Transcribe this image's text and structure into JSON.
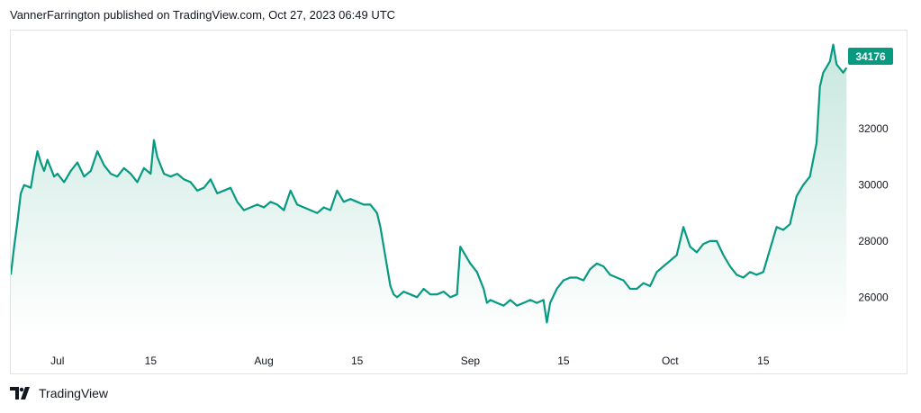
{
  "header": {
    "text": "VannerFarrington published on TradingView.com, Oct 27, 2023 06:49 UTC"
  },
  "footer": {
    "brand": "TradingView"
  },
  "colors": {
    "line": "#089981",
    "area_top": "#c5e6dd",
    "area_bottom": "#ffffff",
    "label_bg": "#089981"
  },
  "chart_data": {
    "type": "area",
    "last_price_label": "34176",
    "y_ticks": [
      26000,
      28000,
      30000,
      32000
    ],
    "y_tick_labels": [
      "26000",
      "28000",
      "30000",
      "32000"
    ],
    "ylim": [
      24600,
      35500
    ],
    "x_range_days": [
      0,
      126
    ],
    "x_ticks": [
      {
        "label": "Jul",
        "day": 7
      },
      {
        "label": "15",
        "day": 21
      },
      {
        "label": "Aug",
        "day": 38
      },
      {
        "label": "15",
        "day": 52
      },
      {
        "label": "Sep",
        "day": 69
      },
      {
        "label": "15",
        "day": 83
      },
      {
        "label": "Oct",
        "day": 99
      },
      {
        "label": "15",
        "day": 113
      }
    ],
    "series": [
      {
        "values": [
          [
            0,
            26800
          ],
          [
            0.5,
            27800
          ],
          [
            1,
            28700
          ],
          [
            1.5,
            29700
          ],
          [
            2,
            30000
          ],
          [
            3,
            29900
          ],
          [
            3.5,
            30600
          ],
          [
            4,
            31200
          ],
          [
            4.5,
            30800
          ],
          [
            5,
            30500
          ],
          [
            5.5,
            30900
          ],
          [
            6,
            30600
          ],
          [
            6.5,
            30300
          ],
          [
            7,
            30400
          ],
          [
            8,
            30100
          ],
          [
            9,
            30500
          ],
          [
            10,
            30800
          ],
          [
            11,
            30300
          ],
          [
            12,
            30500
          ],
          [
            13,
            31200
          ],
          [
            14,
            30700
          ],
          [
            15,
            30400
          ],
          [
            16,
            30300
          ],
          [
            17,
            30600
          ],
          [
            18,
            30400
          ],
          [
            19,
            30100
          ],
          [
            20,
            30600
          ],
          [
            21,
            30400
          ],
          [
            21.5,
            31600
          ],
          [
            22,
            31000
          ],
          [
            23,
            30400
          ],
          [
            24,
            30300
          ],
          [
            25,
            30400
          ],
          [
            26,
            30200
          ],
          [
            27,
            30100
          ],
          [
            28,
            29800
          ],
          [
            29,
            29900
          ],
          [
            30,
            30200
          ],
          [
            31,
            29700
          ],
          [
            32,
            29800
          ],
          [
            33,
            29900
          ],
          [
            34,
            29400
          ],
          [
            35,
            29100
          ],
          [
            36,
            29200
          ],
          [
            37,
            29300
          ],
          [
            38,
            29200
          ],
          [
            39,
            29400
          ],
          [
            40,
            29300
          ],
          [
            41,
            29100
          ],
          [
            42,
            29800
          ],
          [
            43,
            29300
          ],
          [
            44,
            29200
          ],
          [
            45,
            29100
          ],
          [
            46,
            29000
          ],
          [
            47,
            29200
          ],
          [
            48,
            29100
          ],
          [
            49,
            29800
          ],
          [
            50,
            29400
          ],
          [
            51,
            29500
          ],
          [
            52,
            29400
          ],
          [
            53,
            29300
          ],
          [
            54,
            29300
          ],
          [
            55,
            29000
          ],
          [
            55.5,
            28500
          ],
          [
            56,
            27800
          ],
          [
            57,
            26400
          ],
          [
            57.5,
            26100
          ],
          [
            58,
            26000
          ],
          [
            59,
            26200
          ],
          [
            60,
            26100
          ],
          [
            61,
            26000
          ],
          [
            62,
            26300
          ],
          [
            63,
            26100
          ],
          [
            64,
            26100
          ],
          [
            65,
            26200
          ],
          [
            66,
            26000
          ],
          [
            67,
            26100
          ],
          [
            67.5,
            27800
          ],
          [
            68,
            27600
          ],
          [
            69,
            27200
          ],
          [
            70,
            26900
          ],
          [
            71,
            26300
          ],
          [
            71.5,
            25800
          ],
          [
            72,
            25900
          ],
          [
            73,
            25800
          ],
          [
            74,
            25700
          ],
          [
            75,
            25900
          ],
          [
            76,
            25700
          ],
          [
            77,
            25800
          ],
          [
            78,
            25900
          ],
          [
            79,
            25800
          ],
          [
            80,
            25900
          ],
          [
            80.5,
            25100
          ],
          [
            81,
            25800
          ],
          [
            82,
            26300
          ],
          [
            83,
            26600
          ],
          [
            84,
            26700
          ],
          [
            85,
            26700
          ],
          [
            86,
            26600
          ],
          [
            87,
            27000
          ],
          [
            88,
            27200
          ],
          [
            89,
            27100
          ],
          [
            90,
            26800
          ],
          [
            91,
            26700
          ],
          [
            92,
            26600
          ],
          [
            93,
            26300
          ],
          [
            94,
            26300
          ],
          [
            95,
            26500
          ],
          [
            96,
            26400
          ],
          [
            97,
            26900
          ],
          [
            98,
            27100
          ],
          [
            99,
            27300
          ],
          [
            100,
            27500
          ],
          [
            101,
            28500
          ],
          [
            102,
            27800
          ],
          [
            103,
            27600
          ],
          [
            104,
            27900
          ],
          [
            105,
            28000
          ],
          [
            106,
            28000
          ],
          [
            107,
            27500
          ],
          [
            108,
            27100
          ],
          [
            109,
            26800
          ],
          [
            110,
            26700
          ],
          [
            111,
            26900
          ],
          [
            112,
            26800
          ],
          [
            113,
            26900
          ],
          [
            114,
            27700
          ],
          [
            115,
            28500
          ],
          [
            116,
            28400
          ],
          [
            117,
            28600
          ],
          [
            118,
            29600
          ],
          [
            119,
            30000
          ],
          [
            120,
            30300
          ],
          [
            121,
            31500
          ],
          [
            121.5,
            33500
          ],
          [
            122,
            34000
          ],
          [
            123,
            34400
          ],
          [
            123.5,
            35000
          ],
          [
            124,
            34300
          ],
          [
            125,
            34000
          ],
          [
            125.5,
            34176
          ]
        ]
      }
    ]
  }
}
